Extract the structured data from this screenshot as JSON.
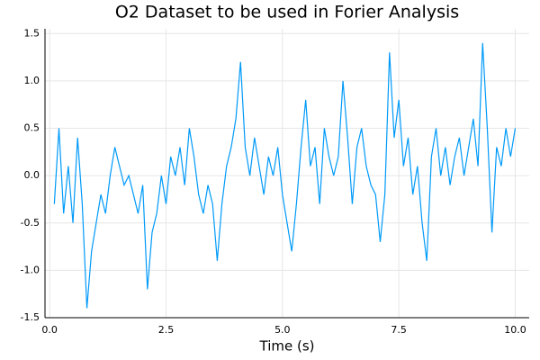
{
  "chart_data": {
    "type": "line",
    "title": "O2 Dataset to be used in Forier Analysis",
    "x_label": "Time (s)",
    "x": [
      0.1,
      0.2,
      0.3,
      0.4,
      0.5,
      0.6,
      0.7,
      0.8,
      0.9,
      1.0,
      1.1,
      1.2,
      1.3,
      1.4,
      1.5,
      1.6,
      1.7,
      1.8,
      1.9,
      2.0,
      2.1,
      2.2,
      2.3,
      2.4,
      2.5,
      2.6,
      2.7,
      2.8,
      2.9,
      3.0,
      3.1,
      3.2,
      3.3,
      3.4,
      3.5,
      3.6,
      3.7,
      3.8,
      3.9,
      4.0,
      4.1,
      4.2,
      4.3,
      4.4,
      4.5,
      4.6,
      4.7,
      4.8,
      4.9,
      5.0,
      5.1,
      5.2,
      5.3,
      5.4,
      5.5,
      5.6,
      5.7,
      5.8,
      5.9,
      6.0,
      6.1,
      6.2,
      6.3,
      6.4,
      6.5,
      6.6,
      6.7,
      6.8,
      6.9,
      7.0,
      7.1,
      7.2,
      7.3,
      7.4,
      7.5,
      7.6,
      7.7,
      7.8,
      7.9,
      8.0,
      8.1,
      8.2,
      8.3,
      8.4,
      8.5,
      8.6,
      8.7,
      8.8,
      8.9,
      9.0,
      9.1,
      9.2,
      9.3,
      9.4,
      9.5,
      9.6,
      9.7,
      9.8,
      9.9,
      10.0
    ],
    "series": [
      {
        "color": "#009af9",
        "values": [
          -0.3,
          0.5,
          -0.4,
          0.1,
          -0.5,
          0.4,
          -0.3,
          -1.4,
          -0.8,
          -0.5,
          -0.2,
          -0.4,
          0.0,
          0.3,
          0.1,
          -0.1,
          0.0,
          -0.2,
          -0.4,
          -0.1,
          -1.2,
          -0.6,
          -0.4,
          0.0,
          -0.3,
          0.2,
          0.0,
          0.3,
          -0.1,
          0.5,
          0.2,
          -0.2,
          -0.4,
          -0.1,
          -0.3,
          -0.9,
          -0.3,
          0.1,
          0.3,
          0.6,
          1.2,
          0.3,
          0.0,
          0.4,
          0.1,
          -0.2,
          0.2,
          0.0,
          0.3,
          -0.2,
          -0.5,
          -0.8,
          -0.3,
          0.3,
          0.8,
          0.1,
          0.3,
          -0.3,
          0.5,
          0.2,
          0.0,
          0.2,
          1.0,
          0.4,
          -0.3,
          0.3,
          0.5,
          0.1,
          -0.1,
          -0.2,
          -0.7,
          -0.2,
          1.3,
          0.4,
          0.8,
          0.1,
          0.4,
          -0.2,
          0.1,
          -0.5,
          -0.9,
          0.2,
          0.5,
          0.0,
          0.3,
          -0.1,
          0.2,
          0.4,
          0.0,
          0.3,
          0.6,
          0.1,
          1.4,
          0.5,
          -0.6,
          0.3,
          0.1,
          0.5,
          0.2,
          0.5
        ]
      }
    ],
    "xlim": [
      -0.1,
      10.3
    ],
    "ylim": [
      -1.5,
      1.55
    ],
    "xticks": [
      {
        "value": 0,
        "label": "0.0"
      },
      2.5,
      {
        "value": 5,
        "label": "5.0"
      },
      7.5,
      {
        "value": 10,
        "label": "10.0"
      }
    ],
    "yticks": [
      -1.5,
      {
        "value": -1,
        "label": "-1.0"
      },
      -0.5,
      {
        "value": 0,
        "label": "0.0"
      },
      0.5,
      {
        "value": 1,
        "label": "1.0"
      },
      1.5
    ],
    "grid": true
  }
}
